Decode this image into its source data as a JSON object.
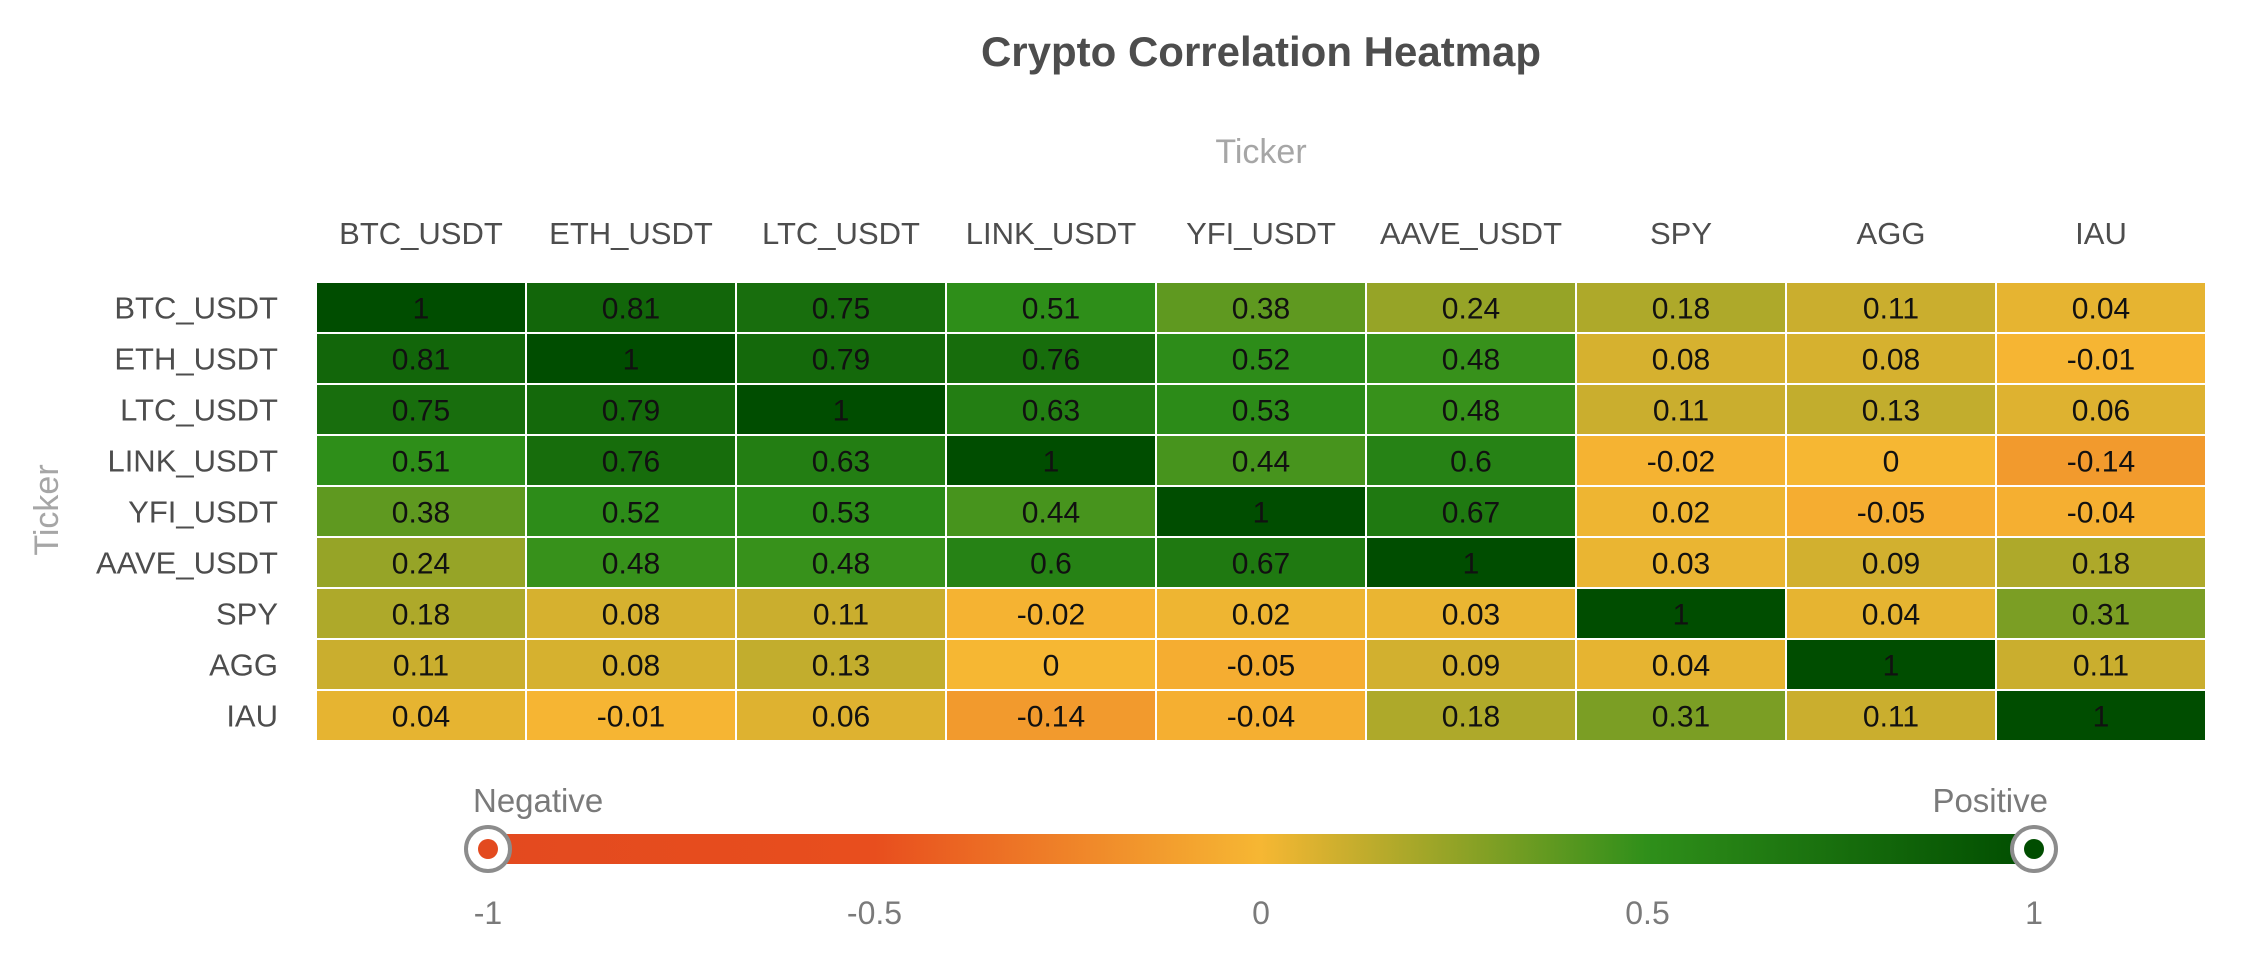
{
  "chart_data": {
    "type": "heatmap",
    "title": "Crypto Correlation Heatmap",
    "xlabel": "Ticker",
    "ylabel": "Ticker",
    "x": [
      "BTC_USDT",
      "ETH_USDT",
      "LTC_USDT",
      "LINK_USDT",
      "YFI_USDT",
      "AAVE_USDT",
      "SPY",
      "AGG",
      "IAU"
    ],
    "y": [
      "BTC_USDT",
      "ETH_USDT",
      "LTC_USDT",
      "LINK_USDT",
      "YFI_USDT",
      "AAVE_USDT",
      "SPY",
      "AGG",
      "IAU"
    ],
    "values": [
      [
        1,
        0.81,
        0.75,
        0.51,
        0.38,
        0.24,
        0.18,
        0.11,
        0.04
      ],
      [
        0.81,
        1,
        0.79,
        0.76,
        0.52,
        0.48,
        0.08,
        0.08,
        -0.01
      ],
      [
        0.75,
        0.79,
        1,
        0.63,
        0.53,
        0.48,
        0.11,
        0.13,
        0.06
      ],
      [
        0.51,
        0.76,
        0.63,
        1,
        0.44,
        0.6,
        -0.02,
        0,
        -0.14
      ],
      [
        0.38,
        0.52,
        0.53,
        0.44,
        1,
        0.67,
        0.02,
        -0.05,
        -0.04
      ],
      [
        0.24,
        0.48,
        0.48,
        0.6,
        0.67,
        1,
        0.03,
        0.09,
        0.18
      ],
      [
        0.18,
        0.08,
        0.11,
        -0.02,
        0.02,
        0.03,
        1,
        0.04,
        0.31
      ],
      [
        0.11,
        0.08,
        0.13,
        0,
        -0.05,
        0.09,
        0.04,
        1,
        0.11
      ],
      [
        0.04,
        -0.01,
        0.06,
        -0.14,
        -0.04,
        0.18,
        0.31,
        0.11,
        1
      ]
    ],
    "value_range": [
      -1,
      1
    ],
    "x_axis_position": "top",
    "color_scale": {
      "stops": [
        -1,
        -0.5,
        0,
        0.5,
        1
      ],
      "colors": [
        "#e34a1f",
        "#e84e1e",
        "#f6b733",
        "#2f8f1a",
        "#004d00"
      ]
    },
    "legend": {
      "placement": "bottom",
      "min_label": "Negative",
      "max_label": "Positive",
      "ticks": [
        -1,
        -0.5,
        0,
        0.5,
        1
      ],
      "min_color": "#e34a1f",
      "max_color": "#004d00"
    }
  }
}
